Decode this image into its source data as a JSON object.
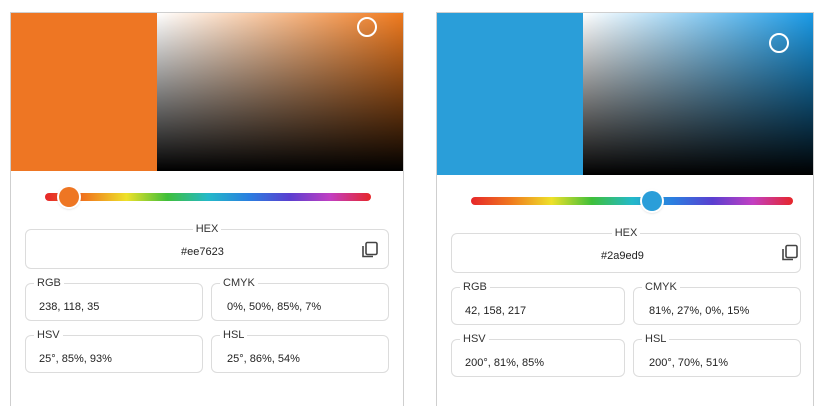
{
  "pickers": [
    {
      "color": "#ee7623",
      "hue_color": "#f07a1e",
      "hue_fraction": 0.07,
      "hex_label": "HEX",
      "hex_value": "#ee7623",
      "rgb_label": "RGB",
      "rgb_value": "238, 118, 35",
      "cmyk_label": "CMYK",
      "cmyk_value": "0%, 50%, 85%, 7%",
      "hsv_label": "HSV",
      "hsv_value": "25°, 85%, 93%",
      "hsl_label": "HSL",
      "hsl_value": "25°, 86%, 54%",
      "copy_icon": "copy-icon"
    },
    {
      "color": "#2a9ed9",
      "hue_color": "#1a9ae6",
      "hue_fraction": 0.56,
      "hex_label": "HEX",
      "hex_value": "#2a9ed9",
      "rgb_label": "RGB",
      "rgb_value": "42, 158, 217",
      "cmyk_label": "CMYK",
      "cmyk_value": "81%, 27%, 0%, 15%",
      "hsv_label": "HSV",
      "hsv_value": "200°, 81%, 85%",
      "hsl_label": "HSL",
      "hsl_value": "200°, 70%, 51%",
      "copy_icon": "copy-icon"
    }
  ]
}
